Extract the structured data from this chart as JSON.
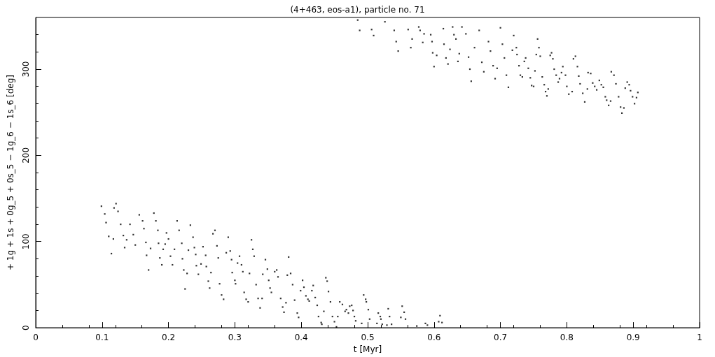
{
  "chart_data": {
    "type": "scatter",
    "title": "(4+463, eos-a1), particle no. 71",
    "xlabel": "t [Myr]",
    "ylabel": "+ 1g + 1s + 0g_5 + 0s_5 − 1g_6 − 1s_6 [deg]",
    "xlim": [
      0,
      1
    ],
    "xticks": [
      0,
      0.1,
      0.2,
      0.3,
      0.4,
      0.5,
      0.6,
      0.7,
      0.8,
      0.9,
      1
    ],
    "ylim": [
      0,
      360
    ],
    "yticks": [
      0,
      100,
      200,
      300
    ],
    "marker": "square",
    "series": [
      {
        "color": "#000000",
        "x": [
          0.099,
          0.121,
          0.104,
          0.106,
          0.11,
          0.114,
          0.117,
          0.118,
          0.124,
          0.128,
          0.132,
          0.134,
          0.137,
          0.142,
          0.147,
          0.15,
          0.156,
          0.161,
          0.163,
          0.166,
          0.167,
          0.17,
          0.173,
          0.178,
          0.181,
          0.184,
          0.185,
          0.187,
          0.19,
          0.192,
          0.195,
          0.197,
          0.2,
          0.203,
          0.206,
          0.209,
          0.213,
          0.216,
          0.22,
          0.221,
          0.223,
          0.225,
          0.228,
          0.23,
          0.233,
          0.237,
          0.239,
          0.241,
          0.242,
          0.245,
          0.249,
          0.252,
          0.256,
          0.257,
          0.26,
          0.262,
          0.264,
          0.267,
          0.27,
          0.273,
          0.275,
          0.277,
          0.28,
          0.283,
          0.287,
          0.29,
          0.293,
          0.295,
          0.296,
          0.3,
          0.301,
          0.304,
          0.307,
          0.31,
          0.312,
          0.314,
          0.317,
          0.32,
          0.322,
          0.325,
          0.327,
          0.329,
          0.332,
          0.335,
          0.338,
          0.341,
          0.342,
          0.346,
          0.349,
          0.351,
          0.353,
          0.355,
          0.36,
          0.363,
          0.365,
          0.369,
          0.372,
          0.374,
          0.377,
          0.379,
          0.381,
          0.384,
          0.387,
          0.39,
          0.394,
          0.396,
          0.399,
          0.402,
          0.404,
          0.407,
          0.41,
          0.412,
          0.416,
          0.418,
          0.421,
          0.424,
          0.426,
          0.43,
          0.431,
          0.434,
          0.437,
          0.439,
          0.441,
          0.444,
          0.447,
          0.45,
          0.453,
          0.455,
          0.458,
          0.462,
          0.466,
          0.468,
          0.471,
          0.473,
          0.476,
          0.478,
          0.48,
          0.482,
          0.491,
          0.494,
          0.497,
          0.498,
          0.501,
          0.503,
          0.514,
          0.516,
          0.519,
          0.52,
          0.522,
          0.529,
          0.531,
          0.533,
          0.536,
          0.55,
          0.552,
          0.555,
          0.557,
          0.574,
          0.587,
          0.59,
          0.607,
          0.609,
          0.612,
          0.485,
          0.488,
          0.506,
          0.509,
          0.526,
          0.54,
          0.543,
          0.546,
          0.561,
          0.565,
          0.567,
          0.577,
          0.579,
          0.583,
          0.585,
          0.595,
          0.597,
          0.598,
          0.6,
          0.604,
          0.614,
          0.615,
          0.618,
          0.621,
          0.624,
          0.628,
          0.63,
          0.633,
          0.636,
          0.638,
          0.642,
          0.648,
          0.652,
          0.654,
          0.656,
          0.661,
          0.668,
          0.672,
          0.675,
          0.682,
          0.685,
          0.689,
          0.692,
          0.695,
          0.7,
          0.703,
          0.706,
          0.709,
          0.712,
          0.718,
          0.72,
          0.724,
          0.725,
          0.728,
          0.73,
          0.733,
          0.736,
          0.738,
          0.742,
          0.745,
          0.747,
          0.75,
          0.752,
          0.754,
          0.756,
          0.758,
          0.76,
          0.763,
          0.766,
          0.768,
          0.77,
          0.772,
          0.775,
          0.777,
          0.779,
          0.781,
          0.784,
          0.787,
          0.789,
          0.792,
          0.794,
          0.798,
          0.8,
          0.803,
          0.808,
          0.81,
          0.813,
          0.816,
          0.818,
          0.82,
          0.824,
          0.827,
          0.831,
          0.832,
          0.836,
          0.839,
          0.842,
          0.845,
          0.849,
          0.852,
          0.855,
          0.858,
          0.86,
          0.863,
          0.866,
          0.867,
          0.871,
          0.874,
          0.878,
          0.881,
          0.883,
          0.886,
          0.888,
          0.891,
          0.894,
          0.896,
          0.899,
          0.902,
          0.905,
          0.907
        ],
        "values": [
          141,
          144,
          132,
          122,
          106,
          86,
          103,
          139,
          135,
          120,
          107,
          93,
          102,
          120,
          108,
          96,
          131,
          124,
          115,
          99,
          84,
          67,
          92,
          133,
          124,
          113,
          98,
          81,
          73,
          91,
          97,
          110,
          103,
          83,
          73,
          91,
          124,
          113,
          98,
          80,
          67,
          45,
          63,
          90,
          119,
          105,
          93,
          85,
          72,
          62,
          74,
          94,
          84,
          71,
          54,
          46,
          64,
          109,
          113,
          95,
          81,
          51,
          38,
          33,
          87,
          105,
          89,
          79,
          64,
          55,
          51,
          75,
          83,
          73,
          65,
          41,
          33,
          30,
          63,
          102,
          91,
          83,
          50,
          34,
          23,
          34,
          62,
          79,
          68,
          55,
          46,
          41,
          65,
          67,
          59,
          34,
          24,
          18,
          29,
          61,
          82,
          63,
          50,
          32,
          17,
          12,
          43,
          55,
          47,
          37,
          33,
          31,
          43,
          49,
          35,
          26,
          13,
          6,
          4,
          19,
          58,
          54,
          42,
          30,
          13,
          7,
          1,
          13,
          30,
          27,
          19,
          21,
          17,
          25,
          26,
          20,
          13,
          8,
          5,
          38,
          33,
          30,
          21,
          10,
          5,
          17,
          13,
          10,
          4,
          3,
          22,
          13,
          4,
          12,
          25,
          18,
          10,
          2,
          5,
          3,
          7,
          14,
          6,
          357,
          345,
          346,
          339,
          355,
          345,
          332,
          321,
          346,
          325,
          335,
          349,
          345,
          331,
          341,
          340,
          332,
          319,
          303,
          316,
          347,
          329,
          313,
          306,
          323,
          349,
          340,
          335,
          309,
          318,
          349,
          341,
          314,
          300,
          286,
          325,
          345,
          308,
          297,
          332,
          321,
          304,
          289,
          301,
          348,
          329,
          313,
          293,
          279,
          322,
          339,
          325,
          317,
          304,
          293,
          291,
          309,
          313,
          301,
          290,
          281,
          280,
          298,
          317,
          335,
          325,
          315,
          291,
          282,
          274,
          269,
          277,
          316,
          319,
          312,
          300,
          293,
          285,
          289,
          296,
          303,
          293,
          280,
          271,
          274,
          312,
          315,
          303,
          292,
          283,
          272,
          262,
          277,
          296,
          295,
          284,
          280,
          276,
          287,
          282,
          279,
          268,
          264,
          258,
          263,
          297,
          293,
          283,
          268,
          256,
          249,
          255,
          278,
          285,
          282,
          275,
          268,
          260,
          267,
          273
        ]
      }
    ]
  }
}
